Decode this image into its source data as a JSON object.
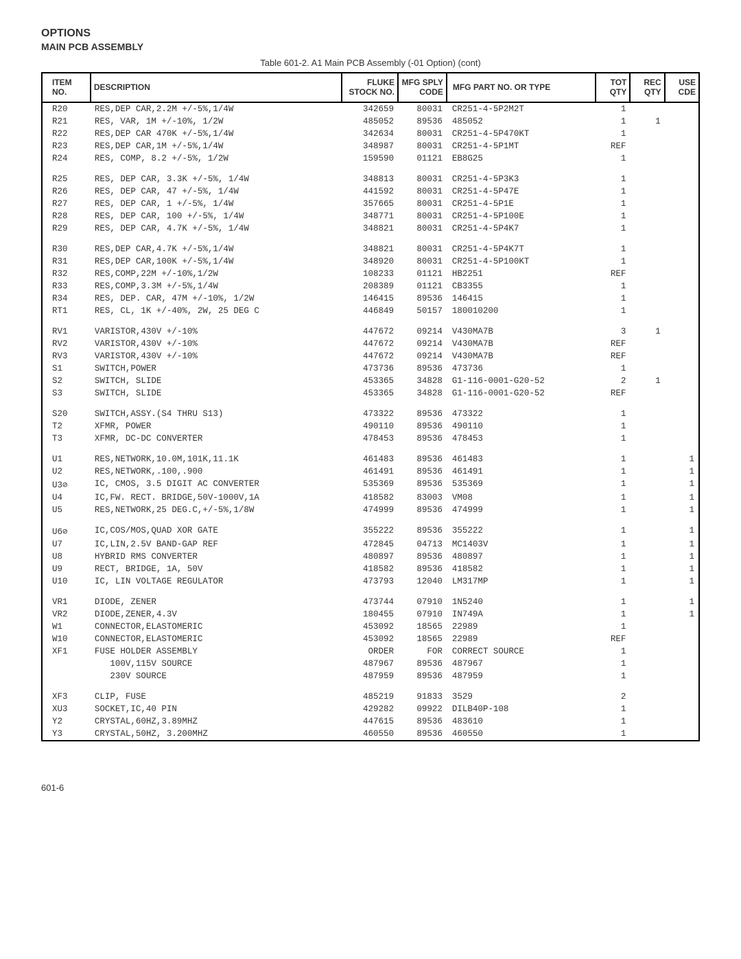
{
  "header": {
    "section": "OPTIONS",
    "subsection": "MAIN PCB ASSEMBLY",
    "caption": "Table 601-2. A1 Main PCB Assembly (-01 Option) (cont)"
  },
  "columns": [
    "ITEM\nNO.",
    "DESCRIPTION",
    "FLUKE\nSTOCK\nNO.",
    "MFG\nSPLY\nCODE",
    "MFG PART NO.\nOR TYPE",
    "TOT\nQTY",
    "REC\nQTY",
    "USE\nCDE"
  ],
  "groups": [
    [
      [
        "R20",
        "RES,DEP CAR,2.2M +/-5%,1/4W",
        "342659",
        "80031",
        "CR251-4-5P2M2T",
        "1",
        "",
        ""
      ],
      [
        "R21",
        "RES, VAR, 1M +/-10%, 1/2W",
        "485052",
        "89536",
        "485052",
        "1",
        "1",
        ""
      ],
      [
        "R22",
        "RES,DEP CAR 470K +/-5%,1/4W",
        "342634",
        "80031",
        "CR251-4-5P470KT",
        "1",
        "",
        ""
      ],
      [
        "R23",
        "RES,DEP CAR,1M +/-5%,1/4W",
        "348987",
        "80031",
        "CR251-4-5P1MT",
        "REF",
        "",
        ""
      ],
      [
        "R24",
        "RES, COMP, 8.2 +/-5%, 1/2W",
        "159590",
        "01121",
        "EB8G25",
        "1",
        "",
        ""
      ]
    ],
    [
      [
        "R25",
        "RES, DEP CAR, 3.3K +/-5%, 1/4W",
        "348813",
        "80031",
        "CR251-4-5P3K3",
        "1",
        "",
        ""
      ],
      [
        "R26",
        "RES, DEP CAR, 47 +/-5%, 1/4W",
        "441592",
        "80031",
        "CR251-4-5P47E",
        "1",
        "",
        ""
      ],
      [
        "R27",
        "RES, DEP CAR, 1 +/-5%, 1/4W",
        "357665",
        "80031",
        "CR251-4-5P1E",
        "1",
        "",
        ""
      ],
      [
        "R28",
        "RES, DEP CAR, 100 +/-5%, 1/4W",
        "348771",
        "80031",
        "CR251-4-5P100E",
        "1",
        "",
        ""
      ],
      [
        "R29",
        "RES, DEP CAR, 4.7K +/-5%, 1/4W",
        "348821",
        "80031",
        "CR251-4-5P4K7",
        "1",
        "",
        ""
      ]
    ],
    [
      [
        "R30",
        "RES,DEP CAR,4.7K +/-5%,1/4W",
        "348821",
        "80031",
        "CR251-4-5P4K7T",
        "1",
        "",
        ""
      ],
      [
        "R31",
        "RES,DEP CAR,100K +/-5%,1/4W",
        "348920",
        "80031",
        "CR251-4-5P100KT",
        "1",
        "",
        ""
      ],
      [
        "R32",
        "RES,COMP,22M +/-10%,1/2W",
        "108233",
        "01121",
        "HB2251",
        "REF",
        "",
        ""
      ],
      [
        "R33",
        "RES,COMP,3.3M +/-5%,1/4W",
        "208389",
        "01121",
        "CB3355",
        "1",
        "",
        ""
      ],
      [
        "R34",
        "RES, DEP. CAR, 47M +/-10%, 1/2W",
        "146415",
        "89536",
        "146415",
        "1",
        "",
        ""
      ],
      [
        "RT1",
        "RES, CL, 1K +/-40%, 2W, 25 DEG C",
        "446849",
        "50157",
        "180010200",
        "1",
        "",
        ""
      ]
    ],
    [
      [
        "RV1",
        "VARISTOR,430V +/-10%",
        "447672",
        "09214",
        "V430MA7B",
        "3",
        "1",
        ""
      ],
      [
        "RV2",
        "VARISTOR,430V +/-10%",
        "447672",
        "09214",
        "V430MA7B",
        "REF",
        "",
        ""
      ],
      [
        "RV3",
        "VARISTOR,430V +/-10%",
        "447672",
        "09214",
        "V430MA7B",
        "REF",
        "",
        ""
      ],
      [
        "S1",
        "SWITCH,POWER",
        "473736",
        "89536",
        "473736",
        "1",
        "",
        ""
      ],
      [
        "S2",
        "SWITCH, SLIDE",
        "453365",
        "34828",
        "G1-116-0001-G20-52",
        "2",
        "1",
        ""
      ],
      [
        "S3",
        "SWITCH, SLIDE",
        "453365",
        "34828",
        "G1-116-0001-G20-52",
        "REF",
        "",
        ""
      ]
    ],
    [
      [
        "S20",
        "SWITCH,ASSY.(S4 THRU S13)",
        "473322",
        "89536",
        "473322",
        "1",
        "",
        ""
      ],
      [
        "T2",
        "XFMR, POWER",
        "490110",
        "89536",
        "490110",
        "1",
        "",
        ""
      ],
      [
        "T3",
        "XFMR, DC-DC CONVERTER",
        "478453",
        "89536",
        "478453",
        "1",
        "",
        ""
      ]
    ],
    [
      [
        "U1",
        "RES,NETWORK,10.0M,101K,11.1K",
        "461483",
        "89536",
        "461483",
        "1",
        "",
        "1"
      ],
      [
        "U2",
        "RES,NETWORK,.100,.900",
        "461491",
        "89536",
        "461491",
        "1",
        "",
        "1"
      ],
      [
        "U3⊘",
        "IC, CMOS, 3.5 DIGIT AC CONVERTER",
        "535369",
        "89536",
        "535369",
        "1",
        "",
        "1"
      ],
      [
        "U4",
        "IC,FW. RECT. BRIDGE,50V-1000V,1A",
        "418582",
        "83003",
        "VM08",
        "1",
        "",
        "1"
      ],
      [
        "U5",
        "RES,NETWORK,25 DEG.C,+/-5%,1/8W",
        "474999",
        "89536",
        "474999",
        "1",
        "",
        "1"
      ]
    ],
    [
      [
        "U6⊘",
        "IC,COS/MOS,QUAD XOR GATE",
        "355222",
        "89536",
        "355222",
        "1",
        "",
        "1"
      ],
      [
        "U7",
        "IC,LIN,2.5V BAND-GAP REF",
        "472845",
        "04713",
        "MC1403V",
        "1",
        "",
        "1"
      ],
      [
        "U8",
        "HYBRID RMS CONVERTER",
        "480897",
        "89536",
        "480897",
        "1",
        "",
        "1"
      ],
      [
        "U9",
        "RECT, BRIDGE, 1A, 50V",
        "418582",
        "89536",
        "418582",
        "1",
        "",
        "1"
      ],
      [
        "U10",
        "IC, LIN VOLTAGE REGULATOR",
        "473793",
        "12040",
        "LM317MP",
        "1",
        "",
        "1"
      ]
    ],
    [
      [
        "VR1",
        "DIODE, ZENER",
        "473744",
        "07910",
        "1N5240",
        "1",
        "",
        "1"
      ],
      [
        "VR2",
        "DIODE,ZENER,4.3V",
        "180455",
        "07910",
        "IN749A",
        "1",
        "",
        "1"
      ],
      [
        "W1",
        "CONNECTOR,ELASTOMERIC",
        "453092",
        "18565",
        "22989",
        "1",
        "",
        ""
      ],
      [
        "W10",
        "CONNECTOR,ELASTOMERIC",
        "453092",
        "18565",
        "22989",
        "REF",
        "",
        ""
      ],
      [
        "XF1",
        "FUSE HOLDER ASSEMBLY",
        "ORDER",
        "FOR",
        "CORRECT SOURCE",
        "1",
        "",
        ""
      ],
      [
        "",
        "   100V,115V SOURCE",
        "487967",
        "89536",
        "487967",
        "1",
        "",
        ""
      ],
      [
        "",
        "   230V SOURCE",
        "487959",
        "89536",
        "487959",
        "1",
        "",
        ""
      ]
    ],
    [
      [
        "XF3",
        "CLIP, FUSE",
        "485219",
        "91833",
        "3529",
        "2",
        "",
        ""
      ],
      [
        "XU3",
        "SOCKET,IC,40 PIN",
        "429282",
        "09922",
        "DILB40P-108",
        "1",
        "",
        ""
      ],
      [
        "Y2",
        "CRYSTAL,60HZ,3.89MHZ",
        "447615",
        "89536",
        "483610",
        "1",
        "",
        ""
      ],
      [
        "Y3",
        "CRYSTAL,50HZ, 3.200MHZ",
        "460550",
        "89536",
        "460550",
        "1",
        "",
        ""
      ]
    ]
  ],
  "footer": "601-6"
}
